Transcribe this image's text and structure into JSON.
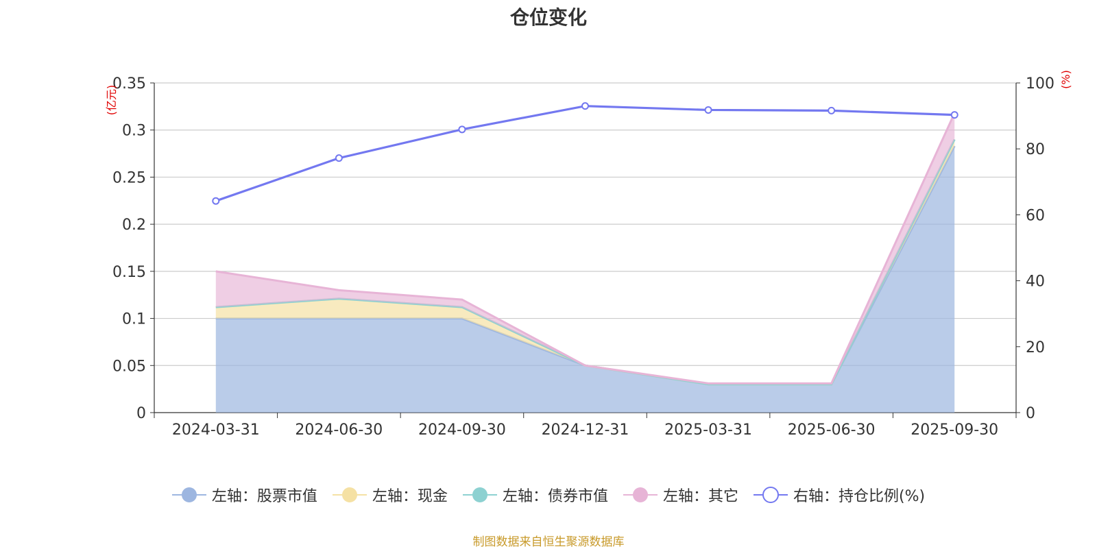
{
  "chart_data": {
    "type": "area",
    "title": "仓位变化",
    "categories": [
      "2024-03-31",
      "2024-06-30",
      "2024-09-30",
      "2024-12-31",
      "2025-03-31",
      "2025-06-30",
      "2025-09-30"
    ],
    "left_axis": {
      "unit": "(亿元)",
      "ylim": [
        0,
        0.35
      ],
      "ticks": [
        "0",
        "0.05",
        "0.1",
        "0.15",
        "0.2",
        "0.25",
        "0.3",
        "0.35"
      ]
    },
    "right_axis": {
      "unit": "(%)",
      "ylim": [
        0,
        100
      ],
      "ticks": [
        "0",
        "20",
        "40",
        "60",
        "80",
        "100"
      ]
    },
    "series": [
      {
        "name": "左轴：股票市值",
        "axis": "left",
        "stacked": true,
        "color": "#9db6e0",
        "values": [
          0.1,
          0.1,
          0.1,
          0.05,
          0.03,
          0.03,
          0.283
        ]
      },
      {
        "name": "左轴：现金",
        "axis": "left",
        "stacked": true,
        "color": "#f5e1a4",
        "values": [
          0.012,
          0.021,
          0.012,
          0.0,
          0.0,
          0.0,
          0.007
        ]
      },
      {
        "name": "左轴：债券市值",
        "axis": "left",
        "stacked": true,
        "color": "#8dd1d1",
        "values": [
          0.0,
          0.0,
          0.0,
          0.0,
          0.0,
          0.0,
          0.0
        ]
      },
      {
        "name": "左轴：其它",
        "axis": "left",
        "stacked": true,
        "color": "#e7b4d6",
        "values": [
          0.038,
          0.009,
          0.008,
          0.0,
          0.001,
          0.001,
          0.028
        ]
      },
      {
        "name": "右轴：持仓比例(%)",
        "axis": "right",
        "type": "line",
        "color": "#7378f0",
        "values": [
          64.2,
          77.2,
          85.9,
          93.0,
          91.8,
          91.6,
          90.3
        ]
      }
    ]
  },
  "source": "制图数据来自恒生聚源数据库"
}
